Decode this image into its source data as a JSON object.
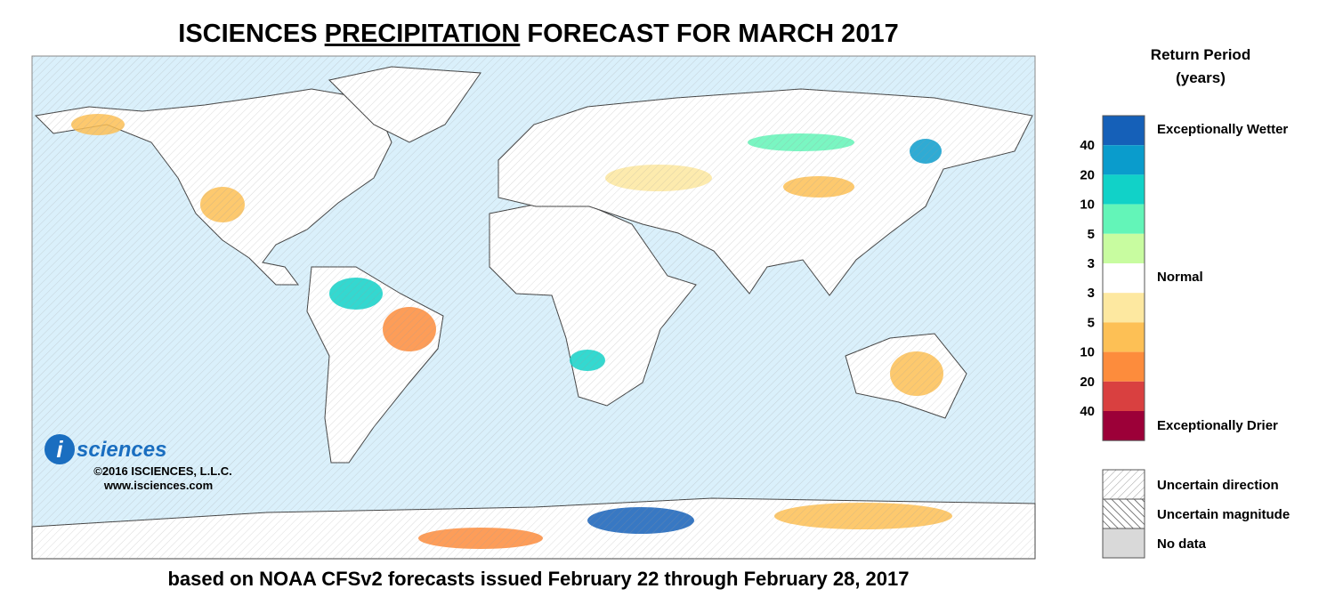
{
  "header": {
    "title_parts": [
      "ISCIENCES ",
      "PRECIPITATION",
      " FORECAST FOR MARCH 2017"
    ],
    "subtitle": "based on NOAA CFSv2 forecasts issued February 22 through February 28, 2017"
  },
  "logo": {
    "mark": "i",
    "name": "sciences",
    "copyright": "©2016 ISCIENCES, L.L.C.",
    "url": "www.isciences.com"
  },
  "legend": {
    "title": "Return Period",
    "unit": "(years)",
    "colors": [
      "#1560b8",
      "#0a9ccc",
      "#11d2c8",
      "#63f5b8",
      "#c8fca0",
      "#ffffff",
      "#fde8a0",
      "#fdc055",
      "#fd8c3c",
      "#d94040",
      "#9c0038"
    ],
    "ticks": [
      "40",
      "20",
      "10",
      "5",
      "3",
      "3",
      "5",
      "10",
      "20",
      "40"
    ],
    "wetter": "Exceptionally Wetter",
    "normal": "Normal",
    "drier": "Exceptionally Drier",
    "patterns": [
      "Uncertain direction",
      "Uncertain magnitude",
      "No data"
    ]
  }
}
